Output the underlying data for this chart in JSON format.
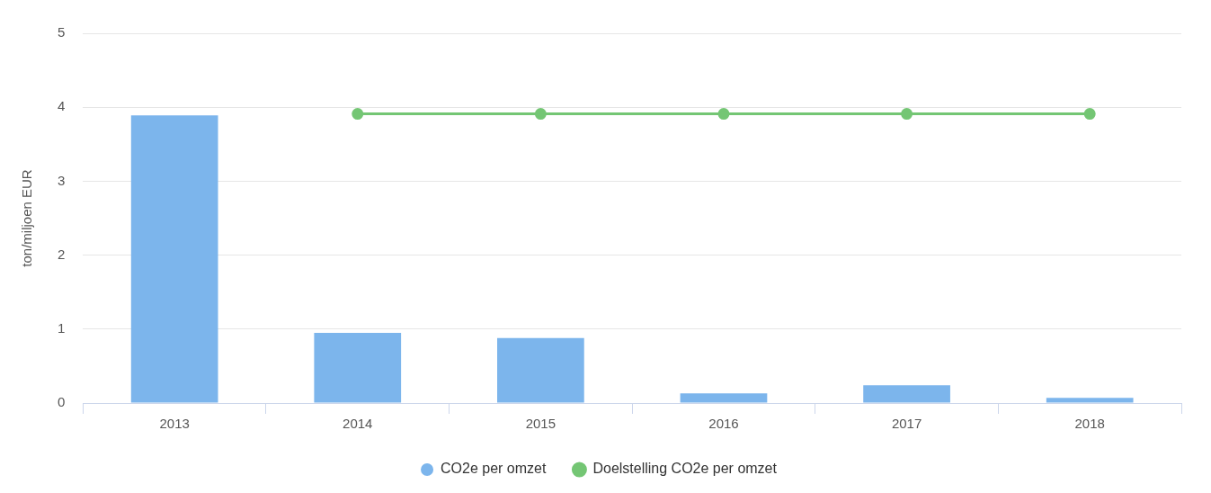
{
  "chart_data": {
    "type": "bar",
    "ylabel": "ton/miljoen EUR",
    "categories": [
      "2013",
      "2014",
      "2015",
      "2016",
      "2017",
      "2018"
    ],
    "series": [
      {
        "name": "CO2e per omzet",
        "color": "#7cb5ec",
        "values": [
          3.89,
          0.95,
          0.88,
          0.13,
          0.24,
          0.07
        ]
      },
      {
        "name": "Doelstelling CO2e per omzet",
        "type": "line",
        "color": "#74c674",
        "values": [
          null,
          3.91,
          3.91,
          3.91,
          3.91,
          3.91
        ]
      }
    ],
    "ylim": [
      0,
      5
    ],
    "yticks": [
      0,
      1,
      2,
      3,
      4,
      5
    ],
    "grid": "y",
    "legend": "bottom",
    "marker": "circle"
  }
}
